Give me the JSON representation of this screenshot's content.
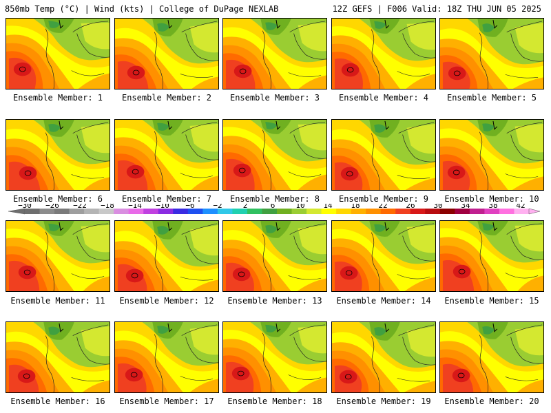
{
  "header": {
    "left": "850mb Temp (°C) | Wind (kts) | College of DuPage NEXLAB",
    "right": "12Z GEFS | F006 Valid: 18Z THU JUN 05 2025"
  },
  "panels": [
    {
      "label": "Ensemble Member: 1"
    },
    {
      "label": "Ensemble Member: 2"
    },
    {
      "label": "Ensemble Member: 3"
    },
    {
      "label": "Ensemble Member: 4"
    },
    {
      "label": "Ensemble Member: 5"
    },
    {
      "label": "Ensemble Member: 6"
    },
    {
      "label": "Ensemble Member: 7"
    },
    {
      "label": "Ensemble Member: 8"
    },
    {
      "label": "Ensemble Member: 9"
    },
    {
      "label": "Ensemble Member: 10"
    },
    {
      "label": "Ensemble Member: 11"
    },
    {
      "label": "Ensemble Member: 12"
    },
    {
      "label": "Ensemble Member: 13"
    },
    {
      "label": "Ensemble Member: 14"
    },
    {
      "label": "Ensemble Member: 15"
    },
    {
      "label": "Ensemble Member: 16"
    },
    {
      "label": "Ensemble Member: 17"
    },
    {
      "label": "Ensemble Member: 18"
    },
    {
      "label": "Ensemble Member: 19"
    },
    {
      "label": "Ensemble Member: 20"
    }
  ],
  "colorbar": {
    "ticks": [
      "-30",
      "-26",
      "-22",
      "-18",
      "-14",
      "-10",
      "-6",
      "-2",
      "2",
      "6",
      "10",
      "14",
      "18",
      "22",
      "26",
      "30",
      "34",
      "38",
      "42"
    ],
    "colors": [
      "#6e6e6e",
      "#8c8c8c",
      "#7a7a7a",
      "#9e9e9e",
      "#b4b4b4",
      "#c8c8c8",
      "#d98ee0",
      "#e86ae8",
      "#c040e0",
      "#8a2be2",
      "#3a2be2",
      "#1e50f0",
      "#1e90ff",
      "#30c8e8",
      "#20d0b0",
      "#30c060",
      "#40a040",
      "#70b020",
      "#9acd32",
      "#d4e830",
      "#ffff00",
      "#ffd700",
      "#ffb000",
      "#ff9000",
      "#ff6a00",
      "#f04020",
      "#d81818",
      "#b80c10",
      "#8b0000",
      "#a00040",
      "#c02090",
      "#e040c0",
      "#ff70e0",
      "#ffb0f0"
    ],
    "fill_palette": [
      "#ffff00",
      "#ffd700",
      "#ffb000",
      "#ff9000",
      "#ff6a00",
      "#f04020",
      "#d81818"
    ],
    "cool_palette": [
      "#d4e830",
      "#9acd32",
      "#70b020",
      "#40a040"
    ]
  }
}
